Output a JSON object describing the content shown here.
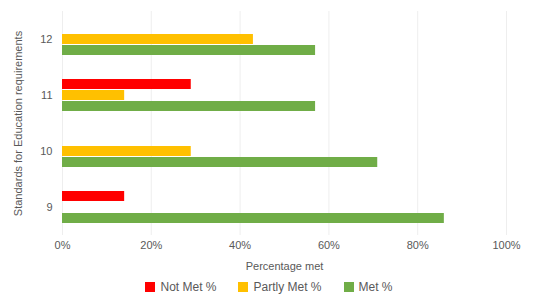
{
  "chart_data": {
    "type": "bar",
    "orientation": "horizontal",
    "ylabel": "Standards for Education requirements",
    "xlabel": "Percentage met",
    "categories": [
      "9",
      "10",
      "11",
      "12"
    ],
    "series": [
      {
        "name": "Not Met %",
        "color": "#ff0000",
        "values": [
          14,
          0,
          29,
          0
        ]
      },
      {
        "name": "Partly Met %",
        "color": "#ffc000",
        "values": [
          0,
          29,
          14,
          43
        ]
      },
      {
        "name": "Met %",
        "color": "#70ad47",
        "values": [
          86,
          71,
          57,
          57
        ]
      }
    ],
    "xlim": [
      0,
      100
    ],
    "xticks": [
      {
        "value": 0,
        "label": "0%"
      },
      {
        "value": 20,
        "label": "20%"
      },
      {
        "value": 40,
        "label": "40%"
      },
      {
        "value": 60,
        "label": "60%"
      },
      {
        "value": 80,
        "label": "80%"
      },
      {
        "value": 100,
        "label": "100%"
      }
    ],
    "grid": true,
    "legend": "bottom"
  }
}
